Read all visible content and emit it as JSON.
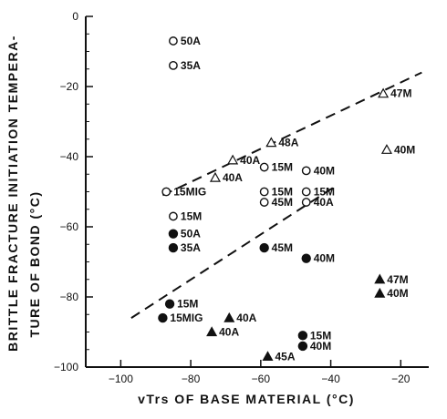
{
  "chart_data": {
    "type": "scatter",
    "xlabel": "vTrs OF BASE MATERIAL (°C)",
    "ylabel_lines": [
      "BRITTLE FRACTURE INITIATION TEMPERA-",
      "TURE OF BOND (°C)"
    ],
    "xlim": [
      -110,
      -12
    ],
    "ylim": [
      -100,
      0
    ],
    "xticks": [
      -100,
      -80,
      -60,
      -40,
      -20
    ],
    "yticks": [
      0,
      -20,
      -40,
      -60,
      -80,
      -100
    ],
    "grid": false,
    "points": [
      {
        "x": -85,
        "y": -7,
        "marker": "open-circle",
        "label": "50A"
      },
      {
        "x": -85,
        "y": -14,
        "marker": "open-circle",
        "label": "35A"
      },
      {
        "x": -25,
        "y": -22,
        "marker": "open-triangle",
        "label": "47M"
      },
      {
        "x": -24,
        "y": -38,
        "marker": "open-triangle",
        "label": "40M"
      },
      {
        "x": -57,
        "y": -36,
        "marker": "open-triangle",
        "label": "48A"
      },
      {
        "x": -68,
        "y": -41,
        "marker": "open-triangle",
        "label": "40A"
      },
      {
        "x": -73,
        "y": -46,
        "marker": "open-triangle",
        "label": "40A"
      },
      {
        "x": -59,
        "y": -43,
        "marker": "open-circle",
        "label": "15M"
      },
      {
        "x": -47,
        "y": -44,
        "marker": "open-circle",
        "label": "40M"
      },
      {
        "x": -87,
        "y": -50,
        "marker": "open-circle",
        "label": "15MIG"
      },
      {
        "x": -59,
        "y": -50,
        "marker": "open-circle",
        "label": "15M"
      },
      {
        "x": -47,
        "y": -50,
        "marker": "open-circle",
        "label": "15M"
      },
      {
        "x": -59,
        "y": -53,
        "marker": "open-circle",
        "label": "45M"
      },
      {
        "x": -47,
        "y": -53,
        "marker": "open-circle",
        "label": "40A"
      },
      {
        "x": -85,
        "y": -57,
        "marker": "open-circle",
        "label": "15M"
      },
      {
        "x": -85,
        "y": -62,
        "marker": "filled-circle",
        "label": "50A"
      },
      {
        "x": -85,
        "y": -66,
        "marker": "filled-circle",
        "label": "35A"
      },
      {
        "x": -59,
        "y": -66,
        "marker": "filled-circle",
        "label": "45M"
      },
      {
        "x": -47,
        "y": -69,
        "marker": "filled-circle",
        "label": "40M"
      },
      {
        "x": -26,
        "y": -75,
        "marker": "filled-triangle",
        "label": "47M"
      },
      {
        "x": -26,
        "y": -79,
        "marker": "filled-triangle",
        "label": "40M"
      },
      {
        "x": -86,
        "y": -82,
        "marker": "filled-circle",
        "label": "15M"
      },
      {
        "x": -88,
        "y": -86,
        "marker": "filled-circle",
        "label": "15MIG"
      },
      {
        "x": -69,
        "y": -86,
        "marker": "filled-triangle",
        "label": "40A"
      },
      {
        "x": -74,
        "y": -90,
        "marker": "filled-triangle",
        "label": "40A"
      },
      {
        "x": -48,
        "y": -91,
        "marker": "filled-circle",
        "label": "15M"
      },
      {
        "x": -48,
        "y": -94,
        "marker": "filled-circle",
        "label": "40M"
      },
      {
        "x": -58,
        "y": -97,
        "marker": "filled-triangle",
        "label": "45A"
      }
    ],
    "bounds": [
      {
        "style": "dashed",
        "from": [
          -88,
          -51
        ],
        "to": [
          -14,
          -16
        ]
      },
      {
        "style": "dashed",
        "from": [
          -97,
          -86
        ],
        "to": [
          -38,
          -48
        ]
      }
    ]
  }
}
